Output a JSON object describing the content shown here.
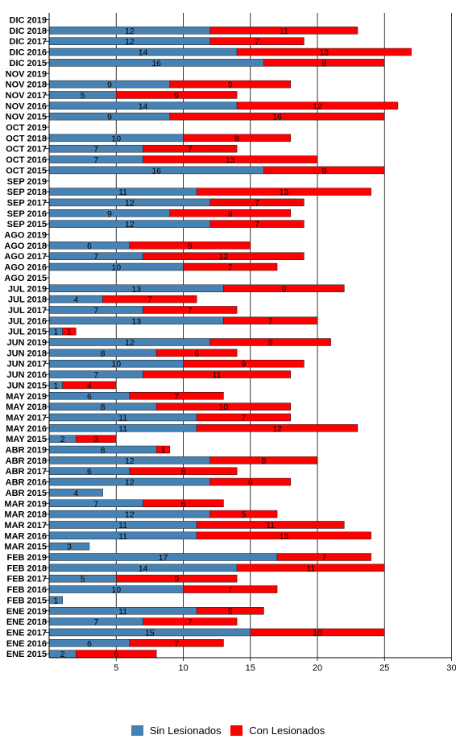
{
  "colors": {
    "sin": "#4682B4",
    "con": "#FF0000"
  },
  "chart_data": {
    "type": "bar",
    "orientation": "horizontal",
    "stacked": true,
    "xlim": [
      0,
      30
    ],
    "xticks": [
      5,
      10,
      15,
      20,
      25,
      30
    ],
    "grid": "vertical",
    "legend_position": "bottom",
    "categories": [
      "DIC 2019",
      "DIC 2018",
      "DIC 2017",
      "DIC 2016",
      "DIC 2015",
      "NOV 2019",
      "NOV 2018",
      "NOV 2017",
      "NOV 2016",
      "NOV 2015",
      "OCT 2019",
      "OCT 2018",
      "OCT 2017",
      "OCT 2016",
      "OCT 2015",
      "SEP 2019",
      "SEP 2018",
      "SEP 2017",
      "SEP 2016",
      "SEP 2015",
      "AGO 2019",
      "AGO 2018",
      "AGO 2017",
      "AGO 2016",
      "AGO 2015",
      "JUL 2019",
      "JUL 2018",
      "JUL 2017",
      "JUL 2016",
      "JUL 2015",
      "JUN 2019",
      "JUN 2018",
      "JUN 2017",
      "JUN 2016",
      "JUN 2015",
      "MAY 2019",
      "MAY 2018",
      "MAY 2017",
      "MAY 2016",
      "MAY 2015",
      "ABR 2019",
      "ABR 2018",
      "ABR 2017",
      "ABR 2016",
      "ABR 2015",
      "MAR 2019",
      "MAR 2018",
      "MAR 2017",
      "MAR 2016",
      "MAR 2015",
      "FEB 2019",
      "FEB 2018",
      "FEB 2017",
      "FEB 2016",
      "FEB 2015",
      "ENE 2019",
      "ENE 2018",
      "ENE 2017",
      "ENE 2016",
      "ENE 2015"
    ],
    "series": [
      {
        "name": "Sin Lesionados",
        "values": [
          null,
          12,
          12,
          14,
          16,
          null,
          9,
          5,
          14,
          9,
          null,
          10,
          7,
          7,
          16,
          null,
          11,
          12,
          9,
          12,
          null,
          6,
          7,
          10,
          null,
          13,
          4,
          7,
          13,
          1,
          12,
          8,
          10,
          7,
          1,
          6,
          8,
          11,
          11,
          2,
          8,
          12,
          6,
          12,
          4,
          7,
          12,
          11,
          11,
          3,
          17,
          14,
          5,
          10,
          1,
          11,
          7,
          15,
          6,
          2
        ]
      },
      {
        "name": "Con Lesionados",
        "values": [
          null,
          11,
          7,
          13,
          9,
          null,
          9,
          9,
          12,
          16,
          null,
          8,
          7,
          13,
          9,
          null,
          13,
          7,
          9,
          7,
          null,
          9,
          12,
          7,
          null,
          9,
          7,
          7,
          7,
          1,
          9,
          6,
          9,
          11,
          4,
          7,
          10,
          7,
          12,
          3,
          1,
          8,
          8,
          6,
          null,
          6,
          5,
          11,
          13,
          null,
          7,
          11,
          9,
          7,
          null,
          5,
          7,
          10,
          7,
          6
        ]
      }
    ]
  }
}
